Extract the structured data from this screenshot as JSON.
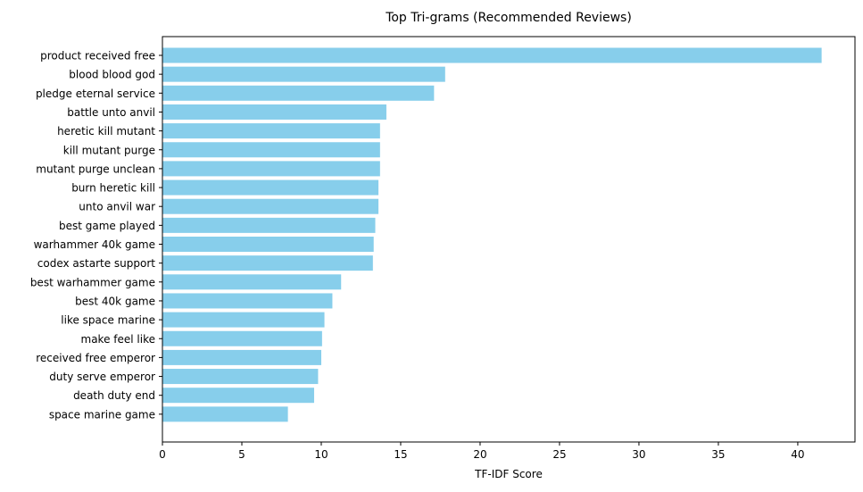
{
  "chart_data": {
    "type": "bar",
    "orientation": "horizontal",
    "title": "Top Tri-grams (Recommended Reviews)",
    "xlabel": "TF-IDF Score",
    "ylabel": "",
    "xlim": [
      0,
      43.6
    ],
    "xticks": [
      0,
      5,
      10,
      15,
      20,
      25,
      30,
      35,
      40
    ],
    "bar_color": "#87ceeb",
    "grid": false,
    "categories": [
      "product received free",
      "blood blood god",
      "pledge eternal service",
      "battle unto anvil",
      "heretic kill mutant",
      "kill mutant purge",
      "mutant purge unclean",
      "burn heretic kill",
      "unto anvil war",
      "best game played",
      "warhammer 40k game",
      "codex astarte support",
      "best warhammer game",
      "best 40k game",
      "like space marine",
      "make feel like",
      "received free emperor",
      "duty serve emperor",
      "death duty end",
      "space marine game"
    ],
    "values": [
      41.5,
      17.8,
      17.1,
      14.1,
      13.7,
      13.7,
      13.7,
      13.6,
      13.6,
      13.4,
      13.3,
      13.25,
      11.25,
      10.7,
      10.2,
      10.05,
      10.0,
      9.8,
      9.55,
      7.9
    ]
  }
}
